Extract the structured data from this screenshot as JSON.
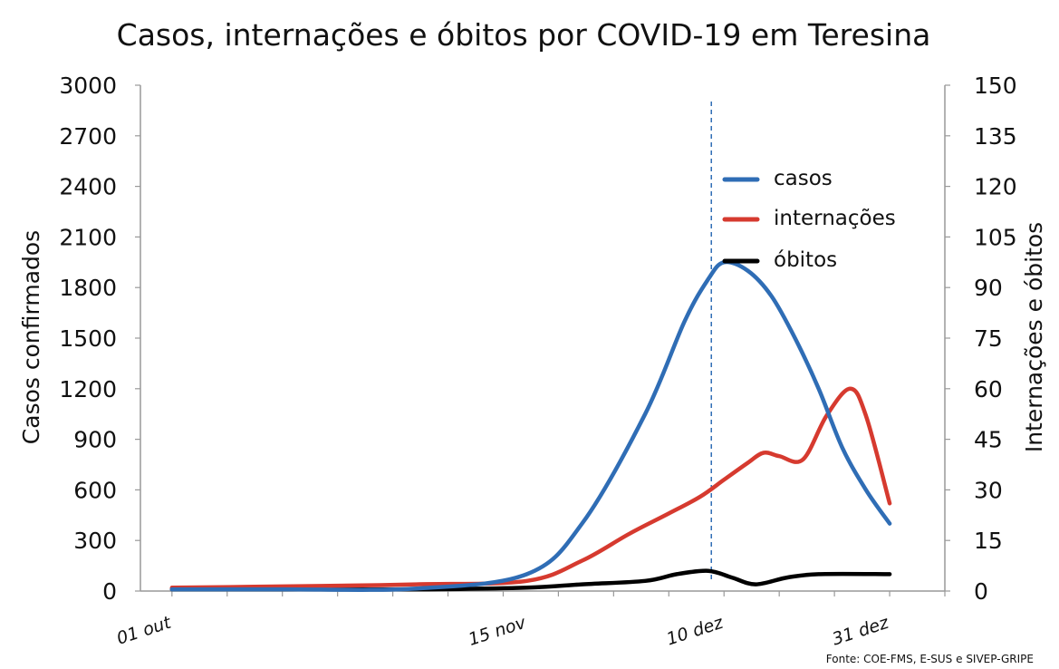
{
  "chart_data": {
    "type": "line",
    "title": "Casos, internações e óbitos por COVID-19 em Teresina",
    "source": "Fonte: COE-FMS, E-SUS e SIVEP-GRIPE",
    "ylabel": "Casos confirmados",
    "y2label": "Internações e óbitos",
    "ylim": [
      0,
      3000
    ],
    "y2lim": [
      0,
      150
    ],
    "yticks": [
      "0",
      "300",
      "600",
      "900",
      "1200",
      "1500",
      "1800",
      "2100",
      "2400",
      "2700",
      "3000"
    ],
    "y2ticks": [
      "0",
      "15",
      "30",
      "45",
      "60",
      "75",
      "90",
      "105",
      "120",
      "135",
      "150"
    ],
    "x_tick_labels": [
      {
        "label": "01 out",
        "date": "2020-10-01"
      },
      {
        "label": "15 nov",
        "date": "2020-11-15"
      },
      {
        "label": "10 dez",
        "date": "2020-12-10"
      },
      {
        "label": "31 dez",
        "date": "2020-12-31"
      }
    ],
    "vertical_marker_date": "2020-12-10",
    "grid": false,
    "legend_position": "top-right",
    "series": [
      {
        "name": "casos",
        "axis": "left",
        "color": "#2f6db5",
        "points": [
          [
            "2020-10-01",
            10
          ],
          [
            "2020-10-15",
            10
          ],
          [
            "2020-11-01",
            15
          ],
          [
            "2020-11-15",
            100
          ],
          [
            "2020-11-22",
            400
          ],
          [
            "2020-11-30",
            1050
          ],
          [
            "2020-12-05",
            1600
          ],
          [
            "2020-12-08",
            1850
          ],
          [
            "2020-12-10",
            1950
          ],
          [
            "2020-12-13",
            1900
          ],
          [
            "2020-12-16",
            1750
          ],
          [
            "2020-12-19",
            1500
          ],
          [
            "2020-12-22",
            1200
          ],
          [
            "2020-12-25",
            850
          ],
          [
            "2020-12-28",
            600
          ],
          [
            "2020-12-31",
            400
          ]
        ]
      },
      {
        "name": "internações",
        "axis": "right",
        "color": "#d63a2f",
        "points": [
          [
            "2020-10-01",
            1
          ],
          [
            "2020-10-20",
            1.5
          ],
          [
            "2020-11-01",
            2
          ],
          [
            "2020-11-15",
            3
          ],
          [
            "2020-11-22",
            9
          ],
          [
            "2020-11-28",
            17
          ],
          [
            "2020-12-03",
            23
          ],
          [
            "2020-12-07",
            28
          ],
          [
            "2020-12-10",
            33
          ],
          [
            "2020-12-13",
            38
          ],
          [
            "2020-12-15",
            41
          ],
          [
            "2020-12-17",
            40
          ],
          [
            "2020-12-20",
            39
          ],
          [
            "2020-12-23",
            52
          ],
          [
            "2020-12-26",
            60
          ],
          [
            "2020-12-28",
            52
          ],
          [
            "2020-12-31",
            26
          ]
        ]
      },
      {
        "name": "óbitos",
        "axis": "right",
        "color": "#000000",
        "points": [
          [
            "2020-10-01",
            0.5
          ],
          [
            "2020-11-01",
            0.5
          ],
          [
            "2020-11-15",
            1
          ],
          [
            "2020-11-22",
            2
          ],
          [
            "2020-11-30",
            3
          ],
          [
            "2020-12-04",
            5
          ],
          [
            "2020-12-08",
            6
          ],
          [
            "2020-12-11",
            4
          ],
          [
            "2020-12-14",
            2
          ],
          [
            "2020-12-18",
            4
          ],
          [
            "2020-12-22",
            5
          ],
          [
            "2020-12-31",
            5
          ]
        ]
      }
    ]
  }
}
